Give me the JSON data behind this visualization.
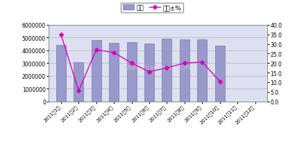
{
  "categories": [
    "2011年1月",
    "2011年2月",
    "2011年3月",
    "2011年4月",
    "2011年5月",
    "2011年6月",
    "2011年7月",
    "2011年8月",
    "2011年9月",
    "2011年10月",
    "2011年11月",
    "2011年12月"
  ],
  "bar_values": [
    4400000,
    3050000,
    4800000,
    4600000,
    4650000,
    4550000,
    4900000,
    4850000,
    4850000,
    4350000,
    0,
    0
  ],
  "line_values": [
    35.0,
    5.5,
    27.0,
    25.5,
    20.0,
    15.5,
    17.5,
    20.0,
    20.5,
    10.5,
    null,
    null
  ],
  "bar_color": "#9999cc",
  "bar_edge_color": "#7777aa",
  "line_color": "#dd00bb",
  "marker_style": "D",
  "ylim_left": [
    0,
    6000000
  ],
  "ylim_right": [
    0.0,
    40.0
  ],
  "yticks_left": [
    0,
    1000000,
    2000000,
    3000000,
    4000000,
    5000000,
    6000000
  ],
  "yticks_right": [
    0.0,
    5.0,
    10.0,
    15.0,
    20.0,
    25.0,
    30.0,
    35.0,
    40.0
  ],
  "legend_bar_label": "當月",
  "legend_line_label": "同比±%",
  "plot_bg_color": "#dde0f0",
  "figure_facecolor": "#ffffff",
  "watermark": "www.qianzhan.com"
}
